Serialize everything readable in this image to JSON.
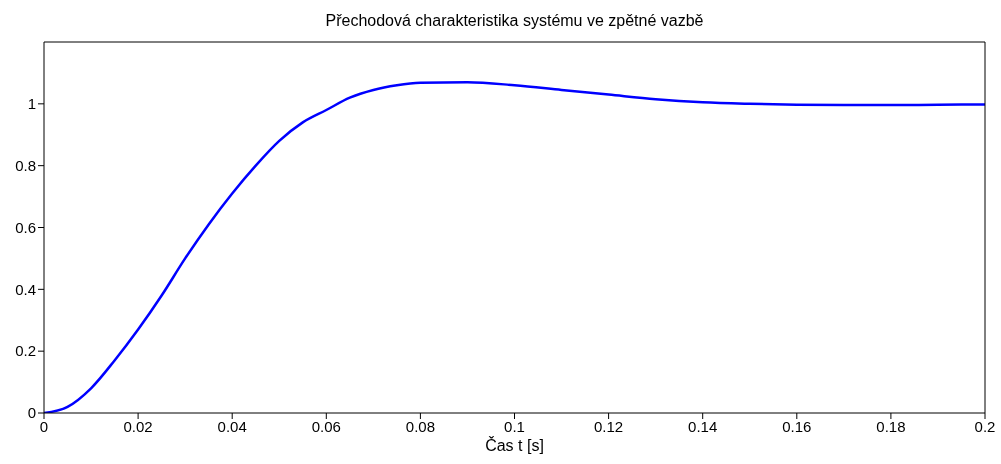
{
  "chart_data": {
    "type": "line",
    "title": "Přechodová charakteristika systému ve zpětné vazbě",
    "xlabel": "Čas t [s]",
    "x": [
      0,
      0.005,
      0.01,
      0.015,
      0.02,
      0.025,
      0.03,
      0.035,
      0.04,
      0.045,
      0.05,
      0.055,
      0.06,
      0.065,
      0.07,
      0.075,
      0.08,
      0.09,
      0.1,
      0.11,
      0.12,
      0.13,
      0.14,
      0.15,
      0.16,
      0.17,
      0.18,
      0.19,
      0.2
    ],
    "series": [
      {
        "color": "#0000ff",
        "values": [
          0,
          0.02,
          0.08,
          0.17,
          0.27,
          0.38,
          0.5,
          0.61,
          0.71,
          0.8,
          0.88,
          0.94,
          0.98,
          1.02,
          1.045,
          1.06,
          1.068,
          1.07,
          1.06,
          1.045,
          1.03,
          1.015,
          1.005,
          1.0,
          0.997,
          0.996,
          0.996,
          0.997,
          0.998
        ]
      }
    ],
    "xlim": [
      0,
      0.2
    ],
    "xticks": [
      0,
      0.02,
      0.04,
      0.06,
      0.08,
      0.1,
      0.12,
      0.14,
      0.16,
      0.18,
      0.2
    ],
    "ylim": [
      0,
      1.2
    ],
    "yticks": [
      0,
      0.2,
      0.4,
      0.6,
      0.8,
      1
    ],
    "grid": false,
    "legend": false,
    "marker": "none",
    "line_style": "solid"
  }
}
